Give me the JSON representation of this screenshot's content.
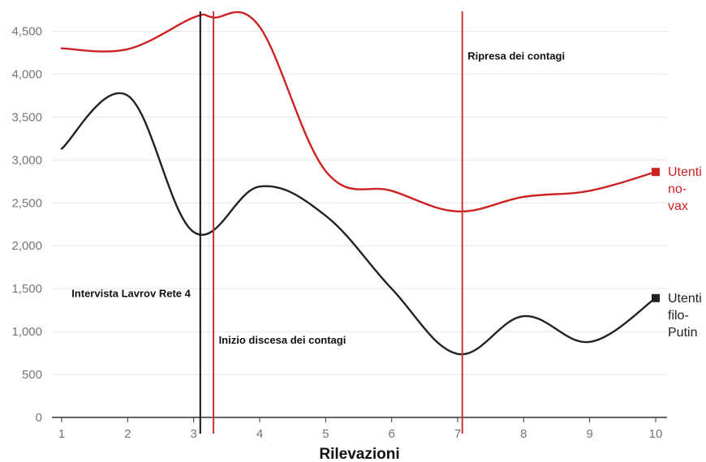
{
  "chart_data": {
    "type": "line",
    "title": "",
    "xlabel": "Rilevazioni",
    "ylabel": "",
    "x": [
      1,
      2,
      3,
      4,
      5,
      6,
      7,
      8,
      9,
      10
    ],
    "xlim": [
      1,
      10
    ],
    "ylim": [
      0,
      4750
    ],
    "x_ticks": [
      1,
      2,
      3,
      4,
      5,
      6,
      7,
      8,
      9,
      10
    ],
    "y_ticks": [
      0,
      500,
      1000,
      1500,
      2000,
      2500,
      3000,
      3500,
      4000,
      4500
    ],
    "y_tick_labels": [
      "0",
      "500",
      "1,000",
      "1,500",
      "2,000",
      "2,500",
      "3,000",
      "3,500",
      "4,000",
      "4,500"
    ],
    "grid": true,
    "legend": "none (series labelled at right end of each line)",
    "series": [
      {
        "name": "Utenti no-vax",
        "label_lines": [
          "Utenti",
          "no-",
          "vax"
        ],
        "color": "#cc2222",
        "points": [
          [
            1,
            4300
          ],
          [
            2,
            4290
          ],
          [
            3,
            4660
          ],
          [
            3.3,
            4660
          ],
          [
            4,
            4550
          ],
          [
            5,
            2870
          ],
          [
            6,
            2640
          ],
          [
            7,
            2400
          ],
          [
            8,
            2570
          ],
          [
            9,
            2640
          ],
          [
            10,
            2860
          ]
        ]
      },
      {
        "name": "Utenti filo-Putin",
        "label_lines": [
          "Utenti",
          "filo-",
          "Putin"
        ],
        "color": "#222222",
        "points": [
          [
            1,
            3130
          ],
          [
            2,
            3750
          ],
          [
            3,
            2160
          ],
          [
            4,
            2690
          ],
          [
            5,
            2350
          ],
          [
            6,
            1500
          ],
          [
            7,
            740
          ],
          [
            8,
            1180
          ],
          [
            9,
            880
          ],
          [
            10,
            1390
          ]
        ]
      }
    ],
    "vertical_markers": [
      {
        "x": 3.1,
        "color": "#111111",
        "label": "Intervista Lavrov Rete 4",
        "label_x": 1.15,
        "label_y": 1400
      },
      {
        "x": 3.3,
        "color": "#cc3333",
        "label": "Inizio discesa dei contagi",
        "label_x": 3.38,
        "label_y": 860
      },
      {
        "x": 7.07,
        "color": "#cc3333",
        "label": "Ripresa dei contagi",
        "label_x": 7.15,
        "label_y": 4170
      }
    ]
  }
}
